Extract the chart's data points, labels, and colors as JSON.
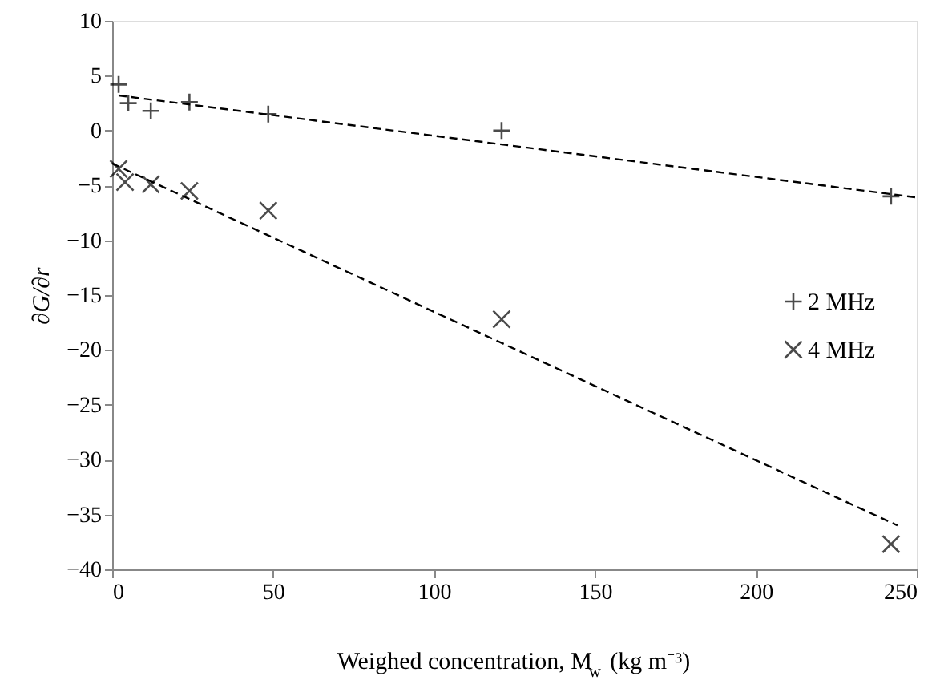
{
  "chart_data": {
    "type": "scatter",
    "xlabel": "Weighed concentration, M$_{w}$ (kg m⁻³)",
    "ylabel": "∂G/∂r",
    "xlim": [
      0,
      250
    ],
    "xticks": [
      0,
      50,
      100,
      150,
      200,
      250
    ],
    "ylim": [
      -40,
      10
    ],
    "yticks": [
      -40,
      -35,
      -30,
      -25,
      -20,
      -15,
      -10,
      -5,
      0,
      5,
      10
    ],
    "grid": false,
    "legend": "right",
    "series": [
      {
        "name": "2 MHz",
        "color": "#000000",
        "marker": "plus",
        "x": [
          2,
          5,
          12,
          24,
          48.5,
          121,
          242
        ],
        "values": [
          4.2,
          2.5,
          1.8,
          2.6,
          1.5,
          0,
          -6
        ]
      },
      {
        "name": "4 MHz",
        "color": "#000000",
        "marker": "cross",
        "x": [
          2,
          4,
          12,
          24,
          48.5,
          121,
          242
        ],
        "values": [
          -3.5,
          -4.7,
          -4.9,
          -5.5,
          -7.3,
          -17.2,
          -37.7
        ]
      },
      {
        "type": "line",
        "color": "#000000",
        "line_style": "dashed",
        "x": [
          2,
          250
        ],
        "values": [
          3.2,
          -6.1
        ]
      },
      {
        "type": "line",
        "color": "#000000",
        "line_style": "dashed",
        "x": [
          0,
          244
        ],
        "values": [
          -3.0,
          -36.0
        ]
      }
    ]
  }
}
